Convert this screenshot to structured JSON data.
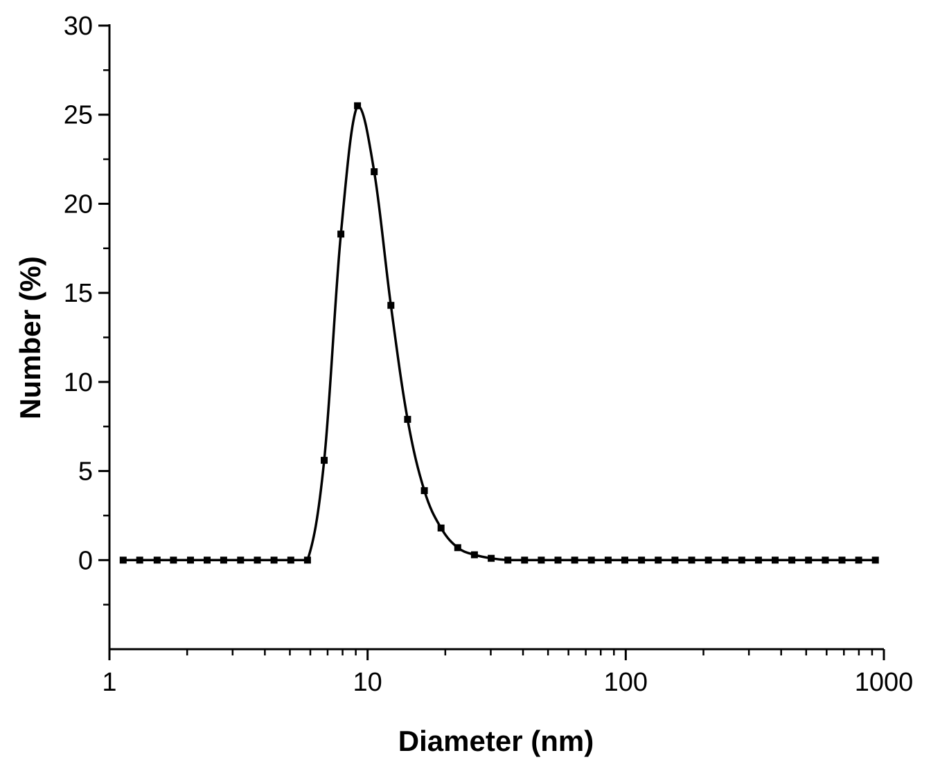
{
  "chart_data": {
    "type": "line",
    "title": "",
    "xlabel": "Diameter (nm)",
    "ylabel": "Number (%)",
    "x_scale": "log",
    "xlim": [
      1,
      1000
    ],
    "ylim": [
      -5,
      30
    ],
    "x_ticks": [
      "1",
      "10",
      "100",
      "1000"
    ],
    "y_ticks": [
      "0",
      "5",
      "10",
      "15",
      "20",
      "25",
      "30"
    ],
    "grid": false,
    "legend": "none",
    "marker": "square",
    "color": "#000000",
    "series": [
      {
        "x": [
          1.13,
          1.31,
          1.53,
          1.77,
          2.06,
          2.39,
          2.77,
          3.22,
          3.74,
          4.34,
          5.04,
          5.85,
          6.79,
          7.88,
          9.14,
          10.61,
          12.31,
          14.29,
          16.59,
          19.26,
          22.35,
          25.94,
          30.11,
          34.95,
          40.56,
          47.08,
          54.64,
          63.42,
          73.61,
          85.44,
          99.17,
          115.1,
          133.6,
          155.1,
          180.0,
          208.9,
          242.5,
          281.4,
          326.7,
          379.1,
          440.0,
          510.7,
          592.8,
          688.1,
          798.6,
          926.9
        ],
        "y": [
          0,
          0,
          0,
          0,
          0,
          0,
          0,
          0,
          0,
          0,
          0,
          0,
          5.6,
          18.3,
          25.5,
          21.8,
          14.3,
          7.9,
          3.9,
          1.8,
          0.7,
          0.3,
          0.1,
          0,
          0,
          0,
          0,
          0,
          0,
          0,
          0,
          0,
          0,
          0,
          0,
          0,
          0,
          0,
          0,
          0,
          0,
          0,
          0,
          0,
          0,
          0
        ]
      }
    ]
  }
}
